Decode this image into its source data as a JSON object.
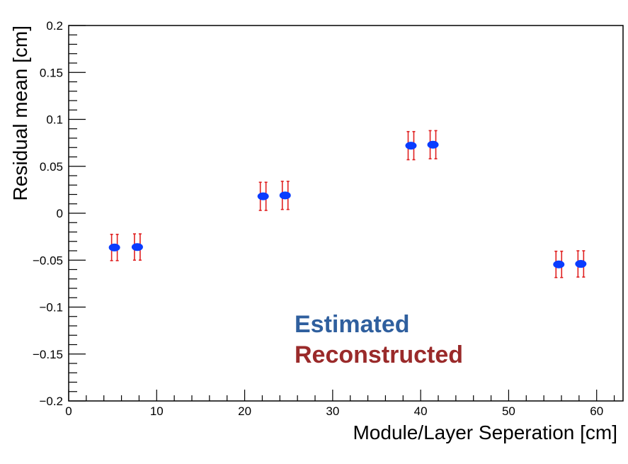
{
  "chart_data": {
    "type": "scatter",
    "title": "",
    "xlabel": "Module/Layer Seperation [cm]",
    "ylabel": "Residual mean [cm]",
    "xlim": [
      0,
      63
    ],
    "ylim": [
      -0.2,
      0.2
    ],
    "x_ticks": [
      "0",
      "10",
      "20",
      "30",
      "40",
      "50",
      "60"
    ],
    "y_ticks": [
      "0.2",
      "0.15",
      "0.1",
      "0.05",
      "0",
      "−0.05",
      "−0.1",
      "−0.15",
      "−0.2"
    ],
    "grid": false,
    "legend_placement": "center-bottom",
    "legend": [
      {
        "label": "Estimated",
        "color": "#2f5f9e"
      },
      {
        "label": "Reconstructed",
        "color": "#9a2a2a"
      }
    ],
    "series": [
      {
        "name": "Estimated",
        "color": "#0a3cff",
        "points": [
          {
            "x": 5.2,
            "y": -0.0365,
            "err": 0.014
          },
          {
            "x": 7.8,
            "y": -0.036,
            "err": 0.014
          },
          {
            "x": 22.1,
            "y": 0.018,
            "err": 0.015
          },
          {
            "x": 24.6,
            "y": 0.019,
            "err": 0.015
          },
          {
            "x": 38.9,
            "y": 0.072,
            "err": 0.015
          },
          {
            "x": 41.4,
            "y": 0.073,
            "err": 0.015
          },
          {
            "x": 55.7,
            "y": -0.0545,
            "err": 0.014
          },
          {
            "x": 58.2,
            "y": -0.054,
            "err": 0.014
          }
        ]
      },
      {
        "name": "Reconstructed",
        "color": "#e02020",
        "points": [
          {
            "x": 5.2,
            "y": -0.0365,
            "err": 0.014
          },
          {
            "x": 7.8,
            "y": -0.036,
            "err": 0.014
          },
          {
            "x": 22.1,
            "y": 0.018,
            "err": 0.015
          },
          {
            "x": 24.6,
            "y": 0.019,
            "err": 0.015
          },
          {
            "x": 38.9,
            "y": 0.072,
            "err": 0.015
          },
          {
            "x": 41.4,
            "y": 0.073,
            "err": 0.015
          },
          {
            "x": 55.7,
            "y": -0.0545,
            "err": 0.014
          },
          {
            "x": 58.2,
            "y": -0.054,
            "err": 0.014
          }
        ]
      }
    ]
  }
}
